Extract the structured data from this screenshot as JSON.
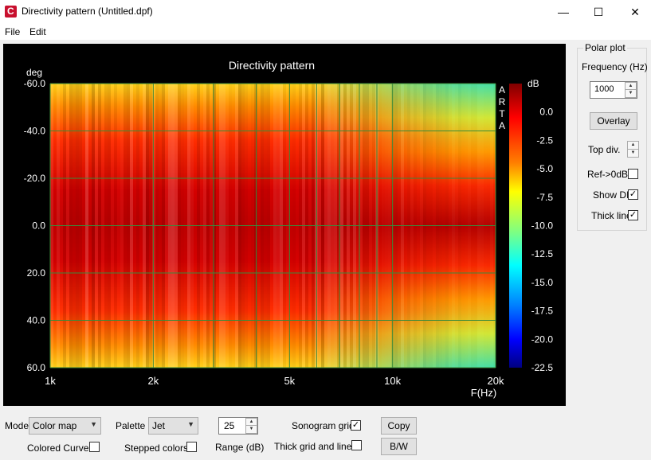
{
  "window": {
    "title": "Directivity pattern (Untitled.dpf)",
    "minimize": "—",
    "maximize": "☐",
    "close": "✕"
  },
  "menu": {
    "file": "File",
    "edit": "Edit"
  },
  "chart_data": {
    "type": "heatmap",
    "title": "Directivity pattern",
    "x_axis": {
      "scale": "log",
      "range": [
        1000,
        20000
      ],
      "ticks": [
        "1k",
        "2k",
        "5k",
        "10k",
        "20k"
      ],
      "label": "F(Hz)"
    },
    "y_axis": {
      "unit": "deg",
      "range": [
        -60,
        60
      ],
      "ticks": [
        "-60.0",
        "-40.0",
        "-20.0",
        "0.0",
        "20.0",
        "40.0",
        "60.0"
      ]
    },
    "colorbar": {
      "unit": "dB",
      "range": [
        -22.5,
        2.5
      ],
      "ticks": [
        "0.0",
        "-2.5",
        "-5.0",
        "-7.5",
        "-10.0",
        "-12.5",
        "-15.0",
        "-17.5",
        "-20.0",
        "-22.5"
      ]
    },
    "watermark": "ARTA",
    "grid": true
  },
  "polar_plot": {
    "group_label": "Polar plot",
    "frequency_label": "Frequency (Hz)",
    "frequency_value": "1000",
    "overlay_button": "Overlay",
    "top_div_label": "Top div.",
    "ref_label": "Ref->0dB",
    "ref_checked": false,
    "show_di_label": "Show DI",
    "show_di_checked": true,
    "thick_line_label": "Thick line",
    "thick_line_checked": true
  },
  "bottom": {
    "mode_label": "Mode",
    "mode_value": "Color map",
    "palette_label": "Palette",
    "palette_value": "Jet",
    "range_value": "25",
    "range_label": "Range (dB)",
    "sonogram_grid_label": "Sonogram grid",
    "sonogram_grid_checked": true,
    "copy_button": "Copy",
    "colored_curves_label": "Colored Curves",
    "colored_curves_checked": false,
    "stepped_colors_label": "Stepped colors",
    "stepped_colors_checked": false,
    "thick_grid_label": "Thick grid and  lines",
    "thick_grid_checked": false,
    "bw_button": "B/W"
  },
  "colors": {
    "plot_background": "#000000",
    "grid": "#3a8a3a",
    "text": "#ffffff"
  }
}
